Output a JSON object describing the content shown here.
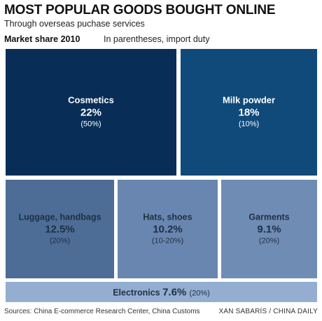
{
  "header": {
    "title": "MOST POPULAR GOODS BOUGHT ONLINE",
    "subtitle": "Through overseas puchase services",
    "metric_label": "Market share 2010",
    "note": "In parentheses, import duty"
  },
  "chart_data": {
    "type": "treemap",
    "value_unit": "%",
    "items": [
      {
        "name": "Cosmetics",
        "share": 22,
        "share_label": "22%",
        "duty_label": "(50%)",
        "color": "#082e58",
        "text_color": "#ffffff"
      },
      {
        "name": "Milk powder",
        "share": 18,
        "share_label": "18%",
        "duty_label": "(10%)",
        "color": "#0f4a7a",
        "text_color": "#ffffff"
      },
      {
        "name": "Luggage, handbags",
        "share": 12.5,
        "share_label": "12.5%",
        "duty_label": "(20%)",
        "color": "#4d6d97",
        "text_color": "#1f2f45"
      },
      {
        "name": "Hats, shoes",
        "share": 10.2,
        "share_label": "10.2%",
        "duty_label": "(10-20%)",
        "color": "#6986b1",
        "text_color": "#1f2f45"
      },
      {
        "name": "Garments",
        "share": 9.1,
        "share_label": "9.1%",
        "duty_label": "(20%)",
        "color": "#6f8cb5",
        "text_color": "#1f2f45"
      },
      {
        "name": "Electronics",
        "share": 7.6,
        "share_label": "7.6%",
        "duty_label": "(20%)",
        "color": "#93aed0",
        "text_color": "#1f2f45"
      }
    ]
  },
  "footer": {
    "source": "Sources: China E-commerce Research Center, China Customs",
    "credit": "XAN SABARÍS / CHINA DAILY"
  }
}
